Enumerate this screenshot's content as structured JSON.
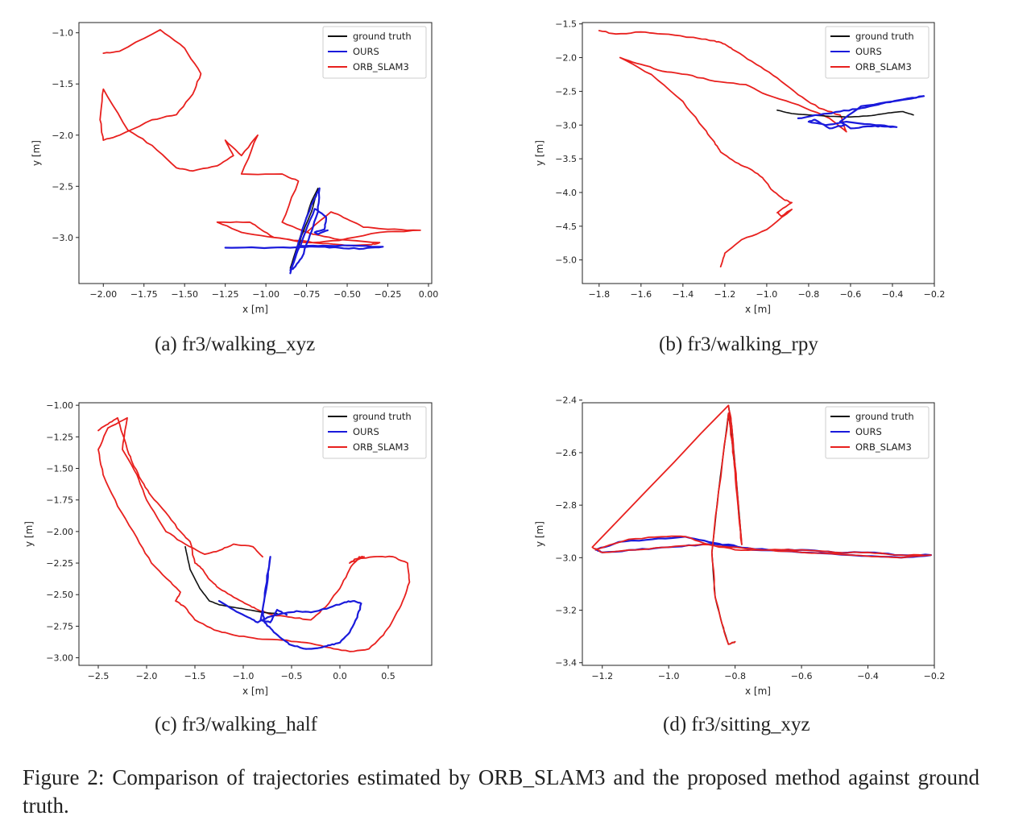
{
  "figure": {
    "caption": "Figure 2:  Comparison of trajectories estimated by ORB_SLAM3 and the proposed method against ground truth.",
    "colors": {
      "ground_truth": "#111111",
      "ours": "#1a1adb",
      "orb_slam3": "#e8201e"
    }
  },
  "chart_data": [
    {
      "type": "line",
      "caption": "(a) fr3/walking_xyz",
      "xlabel": "x [m]",
      "ylabel": "y [m]",
      "xlim": [
        -2.15,
        0.02
      ],
      "ylim": [
        -3.45,
        -0.9
      ],
      "xticks": [
        "−2.00",
        "−1.75",
        "−1.50",
        "−1.25",
        "−1.00",
        "−0.75",
        "−0.50",
        "−0.25",
        "0.00"
      ],
      "xtick_values": [
        -2.0,
        -1.75,
        -1.5,
        -1.25,
        -1.0,
        -0.75,
        -0.5,
        -0.25,
        0.0
      ],
      "yticks": [
        "−1.0",
        "−1.5",
        "−2.0",
        "−2.5",
        "−3.0"
      ],
      "ytick_values": [
        -1.0,
        -1.5,
        -2.0,
        -2.5,
        -3.0
      ],
      "legend": {
        "position": "upper right",
        "entries": [
          "ground truth",
          "OURS",
          "ORB_SLAM3"
        ]
      },
      "series": [
        {
          "name": "ORB_SLAM3",
          "x": [
            -2.0,
            -1.9,
            -1.65,
            -1.5,
            -1.4,
            -1.45,
            -1.55,
            -1.7,
            -1.9,
            -2.0,
            -2.02,
            -2.0,
            -1.85,
            -1.7,
            -1.55,
            -1.45,
            -1.3,
            -1.2,
            -1.25,
            -1.15,
            -1.05,
            -1.15,
            -0.9,
            -0.8,
            -0.9,
            -0.75,
            -0.6,
            -0.5,
            -0.4,
            -0.25,
            -0.05,
            -0.3,
            -0.55,
            -0.75,
            -0.95,
            -1.05,
            -1.1,
            -1.3,
            -1.15,
            -0.95,
            -0.8,
            -0.65,
            -0.5,
            -0.35,
            -0.3,
            -0.55,
            -0.7,
            -0.75
          ],
          "y": [
            -1.2,
            -1.18,
            -0.97,
            -1.15,
            -1.4,
            -1.6,
            -1.8,
            -1.85,
            -2.0,
            -2.05,
            -1.85,
            -1.55,
            -1.95,
            -2.1,
            -2.32,
            -2.35,
            -2.3,
            -2.2,
            -2.05,
            -2.2,
            -2.0,
            -2.38,
            -2.38,
            -2.45,
            -2.85,
            -2.95,
            -2.75,
            -2.82,
            -2.9,
            -2.92,
            -2.93,
            -2.95,
            -3.03,
            -3.05,
            -3.0,
            -2.9,
            -2.85,
            -2.85,
            -2.95,
            -3.0,
            -3.03,
            -3.06,
            -3.08,
            -3.07,
            -3.05,
            -3.02,
            -2.97,
            -2.95
          ]
        },
        {
          "name": "ground truth",
          "x": [
            -0.85,
            -0.8,
            -0.76,
            -0.72,
            -0.68,
            -0.72,
            -0.78,
            -0.82,
            -0.85
          ],
          "y": [
            -3.3,
            -3.05,
            -2.85,
            -2.65,
            -2.52,
            -2.75,
            -2.98,
            -3.2,
            -3.3
          ]
        },
        {
          "name": "OURS",
          "x": [
            -1.25,
            -1.05,
            -0.85,
            -0.7,
            -0.55,
            -0.4,
            -0.28,
            -0.45,
            -0.65,
            -0.8,
            -0.85,
            -0.8,
            -0.76,
            -0.71,
            -0.67,
            -0.68,
            -0.73,
            -0.78,
            -0.83,
            -0.85,
            -0.77,
            -0.7,
            -0.63,
            -0.64,
            -0.7,
            -0.68,
            -0.62
          ],
          "y": [
            -3.1,
            -3.1,
            -3.1,
            -3.09,
            -3.1,
            -3.11,
            -3.09,
            -3.08,
            -3.08,
            -3.08,
            -3.35,
            -3.05,
            -2.85,
            -2.65,
            -2.52,
            -2.75,
            -2.98,
            -3.2,
            -3.3,
            -3.32,
            -3.0,
            -2.72,
            -2.8,
            -2.92,
            -2.95,
            -2.97,
            -2.93
          ]
        }
      ]
    },
    {
      "type": "line",
      "caption": "(b) fr3/walking_rpy",
      "xlabel": "x [m]",
      "ylabel": "y [m]",
      "xlim": [
        -1.88,
        -0.2
      ],
      "ylim": [
        -5.35,
        -1.48
      ],
      "xticks": [
        "−1.8",
        "−1.6",
        "−1.4",
        "−1.2",
        "−1.0",
        "−0.8",
        "−0.6",
        "−0.4",
        "−0.2"
      ],
      "xtick_values": [
        -1.8,
        -1.6,
        -1.4,
        -1.2,
        -1.0,
        -0.8,
        -0.6,
        -0.4,
        -0.2
      ],
      "yticks": [
        "−1.5",
        "−2.0",
        "−2.5",
        "−3.0",
        "−3.5",
        "−4.0",
        "−4.5",
        "−5.0"
      ],
      "ytick_values": [
        -1.5,
        -2.0,
        -2.5,
        -3.0,
        -3.5,
        -4.0,
        -4.5,
        -5.0
      ],
      "legend": {
        "position": "upper right",
        "entries": [
          "ground truth",
          "OURS",
          "ORB_SLAM3"
        ]
      },
      "series": [
        {
          "name": "ORB_SLAM3",
          "x": [
            -1.8,
            -1.72,
            -1.6,
            -1.5,
            -1.35,
            -1.25,
            -1.2,
            -1.15,
            -1.05,
            -0.95,
            -0.85,
            -0.75,
            -0.65,
            -0.62,
            -0.7,
            -0.85,
            -1.0,
            -1.1,
            -1.25,
            -1.38,
            -1.5,
            -1.6,
            -1.7,
            -1.55,
            -1.4,
            -1.3,
            -1.25,
            -1.22,
            -1.15,
            -1.08,
            -1.02,
            -0.98,
            -0.92,
            -0.88,
            -0.95,
            -0.93,
            -0.88,
            -1.0,
            -1.12,
            -1.2,
            -1.22
          ],
          "y": [
            -1.6,
            -1.65,
            -1.62,
            -1.65,
            -1.7,
            -1.75,
            -1.8,
            -1.9,
            -2.1,
            -2.3,
            -2.55,
            -2.75,
            -2.85,
            -3.1,
            -2.9,
            -2.7,
            -2.55,
            -2.4,
            -2.35,
            -2.25,
            -2.2,
            -2.1,
            -2.0,
            -2.25,
            -2.65,
            -3.05,
            -3.25,
            -3.4,
            -3.55,
            -3.65,
            -3.78,
            -3.95,
            -4.1,
            -4.15,
            -4.3,
            -4.35,
            -4.25,
            -4.55,
            -4.7,
            -4.9,
            -5.1
          ]
        },
        {
          "name": "ground truth",
          "x": [
            -0.95,
            -0.88,
            -0.8,
            -0.7,
            -0.6,
            -0.5,
            -0.42,
            -0.35,
            -0.3
          ],
          "y": [
            -2.78,
            -2.83,
            -2.85,
            -2.87,
            -2.88,
            -2.86,
            -2.82,
            -2.8,
            -2.85
          ]
        },
        {
          "name": "OURS",
          "x": [
            -0.85,
            -0.75,
            -0.65,
            -0.55,
            -0.45,
            -0.35,
            -0.25,
            -0.4,
            -0.55,
            -0.65,
            -0.6,
            -0.5,
            -0.45,
            -0.38,
            -0.48,
            -0.62,
            -0.72,
            -0.8,
            -0.77,
            -0.7,
            -0.63
          ],
          "y": [
            -2.9,
            -2.85,
            -2.8,
            -2.75,
            -2.68,
            -2.62,
            -2.57,
            -2.65,
            -2.72,
            -2.95,
            -3.05,
            -3.02,
            -3.02,
            -3.03,
            -3.0,
            -2.95,
            -3.0,
            -2.95,
            -2.92,
            -3.05,
            -3.0
          ]
        }
      ]
    },
    {
      "type": "line",
      "caption": "(c) fr3/walking_half",
      "xlabel": "x [m]",
      "ylabel": "y [m]",
      "xlim": [
        -2.7,
        0.95
      ],
      "ylim": [
        -3.06,
        -0.98
      ],
      "xticks": [
        "−2.5",
        "−2.0",
        "−1.5",
        "−1.0",
        "−0.5",
        "0.0",
        "0.5"
      ],
      "xtick_values": [
        -2.5,
        -2.0,
        -1.5,
        -1.0,
        -0.5,
        0.0,
        0.5
      ],
      "yticks": [
        "−1.00",
        "−1.25",
        "−1.50",
        "−1.75",
        "−2.00",
        "−2.25",
        "−2.50",
        "−2.75",
        "−3.00"
      ],
      "ytick_values": [
        -1.0,
        -1.25,
        -1.5,
        -1.75,
        -2.0,
        -2.25,
        -2.5,
        -2.75,
        -3.0
      ],
      "legend": {
        "position": "upper right",
        "entries": [
          "ground truth",
          "OURS",
          "ORB_SLAM3"
        ]
      },
      "series": [
        {
          "name": "ORB_SLAM3",
          "x": [
            -2.5,
            -2.4,
            -2.3,
            -2.2,
            -2.15,
            -2.05,
            -1.95,
            -1.8,
            -1.65,
            -1.55,
            -1.5,
            -1.42,
            -1.35,
            -1.25,
            -1.1,
            -0.95,
            -0.85,
            -0.7,
            -0.5,
            -0.3,
            -0.15,
            0.0,
            0.1,
            0.2,
            0.25,
            0.1,
            0.15,
            0.35,
            0.55,
            0.7,
            0.72,
            0.65,
            0.55,
            0.45,
            0.3,
            0.1,
            -0.1,
            -0.35,
            -0.6,
            -0.85,
            -1.1,
            -1.3,
            -1.5,
            -1.6,
            -1.7,
            -1.65,
            -1.75,
            -1.95,
            -2.1,
            -2.3,
            -2.45,
            -2.5,
            -2.4,
            -2.2,
            -2.25,
            -2.1,
            -2.0,
            -1.8,
            -1.6,
            -1.4,
            -1.25,
            -1.1,
            -0.9,
            -0.8
          ],
          "y": [
            -1.2,
            -1.15,
            -1.1,
            -1.35,
            -1.45,
            -1.6,
            -1.72,
            -1.85,
            -2.0,
            -2.08,
            -2.25,
            -2.3,
            -2.38,
            -2.45,
            -2.52,
            -2.58,
            -2.62,
            -2.66,
            -2.68,
            -2.7,
            -2.6,
            -2.45,
            -2.3,
            -2.2,
            -2.2,
            -2.25,
            -2.22,
            -2.2,
            -2.2,
            -2.25,
            -2.4,
            -2.55,
            -2.7,
            -2.82,
            -2.93,
            -2.95,
            -2.92,
            -2.88,
            -2.86,
            -2.85,
            -2.82,
            -2.78,
            -2.7,
            -2.6,
            -2.55,
            -2.48,
            -2.4,
            -2.25,
            -2.05,
            -1.8,
            -1.55,
            -1.35,
            -1.18,
            -1.1,
            -1.35,
            -1.55,
            -1.75,
            -2.0,
            -2.1,
            -2.18,
            -2.15,
            -2.1,
            -2.12,
            -2.2
          ]
        },
        {
          "name": "ground truth",
          "x": [
            -1.6,
            -1.55,
            -1.45,
            -1.35,
            -1.25,
            -1.1,
            -0.95,
            -0.8,
            -0.65
          ],
          "y": [
            -2.12,
            -2.3,
            -2.45,
            -2.55,
            -2.58,
            -2.6,
            -2.62,
            -2.64,
            -2.65
          ]
        },
        {
          "name": "OURS",
          "x": [
            -1.25,
            -1.1,
            -0.95,
            -0.85,
            -0.75,
            -0.6,
            -0.45,
            -0.3,
            -0.1,
            0.05,
            0.15,
            0.22,
            0.18,
            0.1,
            0.0,
            -0.1,
            -0.2,
            -0.35,
            -0.5,
            -0.6,
            -0.7,
            -0.78,
            -0.8,
            -0.77,
            -0.72,
            -0.75,
            -0.82,
            -0.72,
            -0.65,
            -0.55
          ],
          "y": [
            -2.55,
            -2.62,
            -2.68,
            -2.72,
            -2.68,
            -2.65,
            -2.63,
            -2.64,
            -2.6,
            -2.56,
            -2.55,
            -2.57,
            -2.68,
            -2.8,
            -2.88,
            -2.9,
            -2.92,
            -2.93,
            -2.9,
            -2.85,
            -2.78,
            -2.72,
            -2.62,
            -2.45,
            -2.2,
            -2.4,
            -2.7,
            -2.72,
            -2.62,
            -2.66
          ]
        }
      ]
    },
    {
      "type": "line",
      "caption": "(d) fr3/sitting_xyz",
      "xlabel": "x [m]",
      "ylabel": "y [m]",
      "xlim": [
        -1.26,
        -0.2
      ],
      "ylim": [
        -3.41,
        -2.41
      ],
      "xticks": [
        "−1.2",
        "−1.0",
        "−0.8",
        "−0.6",
        "−0.4",
        "−0.2"
      ],
      "xtick_values": [
        -1.2,
        -1.0,
        -0.8,
        -0.6,
        -0.4,
        -0.2
      ],
      "yticks": [
        "−2.4",
        "−2.6",
        "−2.8",
        "−3.0",
        "−3.2",
        "−3.4"
      ],
      "ytick_values": [
        -2.4,
        -2.6,
        -2.8,
        -3.0,
        -3.2,
        -3.4
      ],
      "legend": {
        "position": "upper right",
        "entries": [
          "ground truth",
          "OURS",
          "ORB_SLAM3"
        ]
      },
      "series": [
        {
          "name": "ground truth",
          "x": [
            -0.82,
            -0.81,
            -0.8,
            -0.79,
            -0.78,
            -0.79,
            -0.8,
            -0.81,
            -0.82,
            -0.85,
            -0.87,
            -0.86,
            -0.84,
            -0.82,
            -0.8
          ],
          "y": [
            -2.42,
            -2.5,
            -2.65,
            -2.8,
            -2.95,
            -2.82,
            -2.67,
            -2.55,
            -2.45,
            -2.75,
            -2.98,
            -3.15,
            -3.25,
            -3.33,
            -3.32
          ]
        },
        {
          "name": "OURS",
          "x": [
            -1.22,
            -1.15,
            -1.05,
            -0.95,
            -0.88,
            -0.8,
            -0.7,
            -0.6,
            -0.5,
            -0.4,
            -0.3,
            -0.21,
            -0.3,
            -0.45,
            -0.6,
            -0.75,
            -0.82,
            -0.9,
            -1.0,
            -1.1,
            -1.2,
            -1.22
          ],
          "y": [
            -2.97,
            -2.94,
            -2.93,
            -2.92,
            -2.94,
            -2.96,
            -2.97,
            -2.97,
            -2.98,
            -2.98,
            -2.99,
            -2.99,
            -3.0,
            -2.99,
            -2.98,
            -2.97,
            -2.95,
            -2.95,
            -2.96,
            -2.97,
            -2.98,
            -2.97
          ]
        },
        {
          "name": "ORB_SLAM3",
          "x": [
            -1.22,
            -1.12,
            -1.02,
            -0.95,
            -0.88,
            -0.8,
            -0.7,
            -0.6,
            -0.5,
            -0.4,
            -0.3,
            -0.21,
            -0.3,
            -0.45,
            -0.6,
            -0.72,
            -0.8,
            -0.9,
            -1.0,
            -1.1,
            -1.2,
            -1.23,
            -0.82,
            -0.81,
            -0.8,
            -0.79,
            -0.78,
            -0.79,
            -0.8,
            -0.81,
            -0.82,
            -0.85,
            -0.87,
            -0.86,
            -0.84,
            -0.82,
            -0.8
          ],
          "y": [
            -2.97,
            -2.93,
            -2.92,
            -2.92,
            -2.95,
            -2.97,
            -2.97,
            -2.97,
            -2.98,
            -2.98,
            -2.99,
            -2.99,
            -3.0,
            -2.99,
            -2.98,
            -2.97,
            -2.96,
            -2.95,
            -2.96,
            -2.97,
            -2.98,
            -2.96,
            -2.42,
            -2.5,
            -2.65,
            -2.8,
            -2.95,
            -2.82,
            -2.67,
            -2.55,
            -2.45,
            -2.75,
            -2.98,
            -3.15,
            -3.25,
            -3.33,
            -3.32
          ]
        }
      ]
    }
  ]
}
